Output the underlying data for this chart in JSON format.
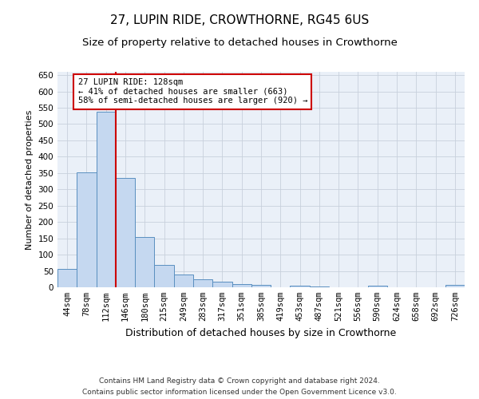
{
  "title": "27, LUPIN RIDE, CROWTHORNE, RG45 6US",
  "subtitle": "Size of property relative to detached houses in Crowthorne",
  "xlabel": "Distribution of detached houses by size in Crowthorne",
  "ylabel": "Number of detached properties",
  "categories": [
    "44sqm",
    "78sqm",
    "112sqm",
    "146sqm",
    "180sqm",
    "215sqm",
    "249sqm",
    "283sqm",
    "317sqm",
    "351sqm",
    "385sqm",
    "419sqm",
    "453sqm",
    "487sqm",
    "521sqm",
    "556sqm",
    "590sqm",
    "624sqm",
    "658sqm",
    "692sqm",
    "726sqm"
  ],
  "values": [
    57,
    353,
    538,
    335,
    155,
    68,
    40,
    24,
    18,
    10,
    8,
    0,
    5,
    2,
    0,
    0,
    5,
    0,
    0,
    0,
    8
  ],
  "bar_color": "#c5d8f0",
  "bar_edge_color": "#5a8fc0",
  "vline_color": "#cc0000",
  "vline_x_idx": 2,
  "annotation_text": "27 LUPIN RIDE: 128sqm\n← 41% of detached houses are smaller (663)\n58% of semi-detached houses are larger (920) →",
  "annotation_box_color": "#cc0000",
  "ylim": [
    0,
    660
  ],
  "yticks": [
    0,
    50,
    100,
    150,
    200,
    250,
    300,
    350,
    400,
    450,
    500,
    550,
    600,
    650
  ],
  "background_color": "#ffffff",
  "axes_bg_color": "#eaf0f8",
  "grid_color": "#c8d0dc",
  "footer_line1": "Contains HM Land Registry data © Crown copyright and database right 2024.",
  "footer_line2": "Contains public sector information licensed under the Open Government Licence v3.0.",
  "title_fontsize": 11,
  "subtitle_fontsize": 9.5,
  "xlabel_fontsize": 9,
  "ylabel_fontsize": 8,
  "tick_fontsize": 7.5,
  "annotation_fontsize": 7.5,
  "footer_fontsize": 6.5
}
